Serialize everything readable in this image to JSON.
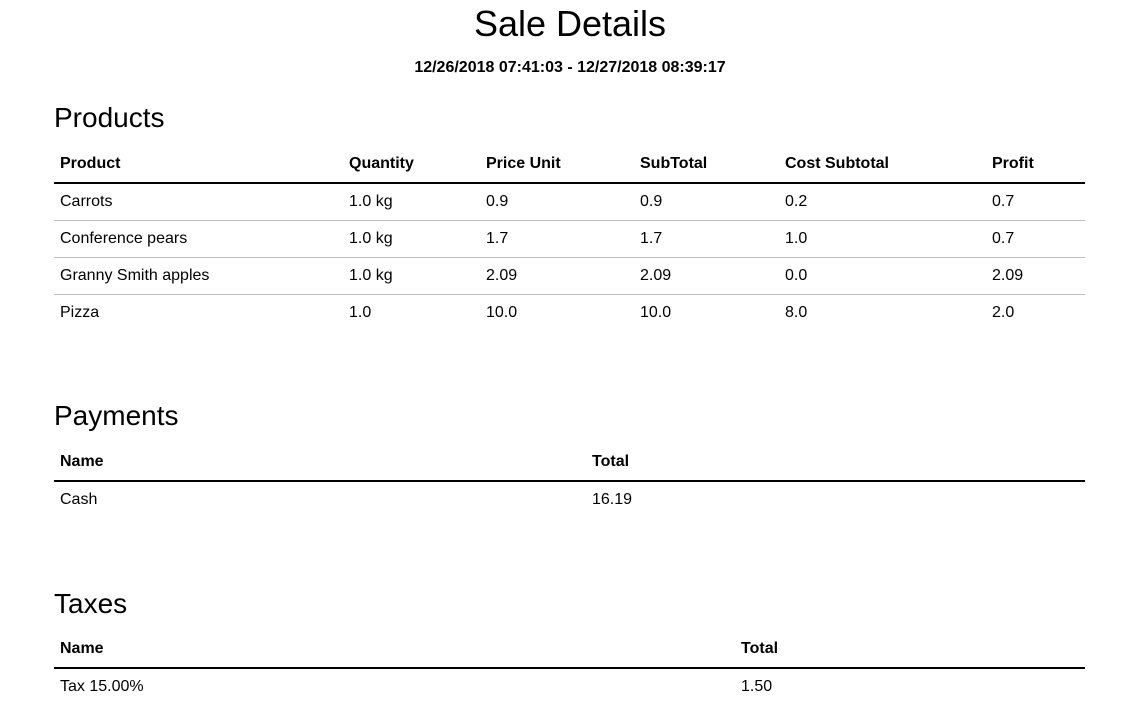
{
  "report": {
    "title": "Sale Details",
    "date_range": "12/26/2018 07:41:03 - 12/27/2018 08:39:17"
  },
  "products": {
    "heading": "Products",
    "columns": [
      "Product",
      "Quantity",
      "Price Unit",
      "SubTotal",
      "Cost Subtotal",
      "Profit"
    ],
    "rows": [
      [
        "Carrots",
        "1.0 kg",
        "0.9",
        "0.9",
        "0.2",
        "0.7"
      ],
      [
        "Conference pears",
        "1.0 kg",
        "1.7",
        "1.7",
        "1.0",
        "0.7"
      ],
      [
        "Granny Smith apples",
        "1.0 kg",
        "2.09",
        "2.09",
        "0.0",
        "2.09"
      ],
      [
        "Pizza",
        "1.0",
        "10.0",
        "10.0",
        "8.0",
        "2.0"
      ]
    ]
  },
  "payments": {
    "heading": "Payments",
    "columns": [
      "Name",
      "Total"
    ],
    "rows": [
      [
        "Cash",
        "16.19"
      ]
    ]
  },
  "taxes": {
    "heading": "Taxes",
    "columns": [
      "Name",
      "Total"
    ],
    "rows": [
      [
        "Tax 15.00%",
        "1.50"
      ]
    ]
  }
}
